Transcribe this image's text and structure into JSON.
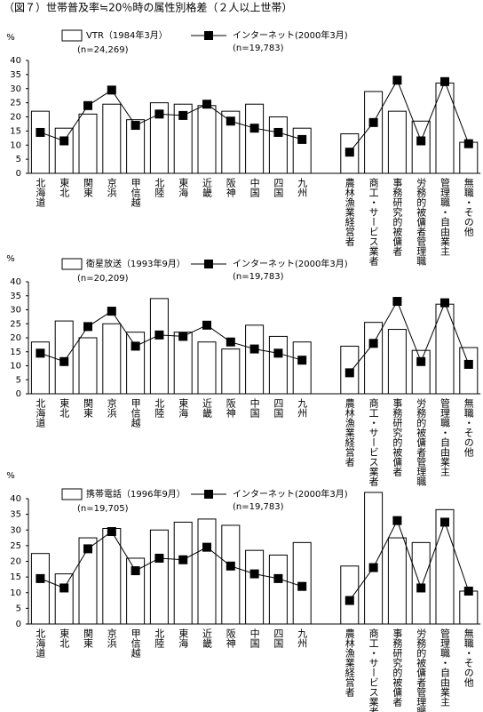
{
  "title": "（図７）世帯普及率≒20％時の属性別格差（２人以上世帯）",
  "chart_data": [
    {
      "type": "bar_line",
      "y_label": "%",
      "ylim": [
        0,
        40
      ],
      "yticks": [
        0,
        5,
        10,
        15,
        20,
        25,
        30,
        35,
        40
      ],
      "categories": [
        "北海道",
        "東北",
        "関東",
        "京浜",
        "甲信越",
        "北陸",
        "東海",
        "近畿",
        "阪神",
        "中国",
        "四国",
        "九州",
        null,
        "農林漁業経営者",
        "商工・サービス業者",
        "事務研究的被傭者",
        "労務的被傭者管理職",
        "管理職・自由業主",
        "無職・その他"
      ],
      "series": [
        {
          "name": "VTR（1984年3月）",
          "note": "(n=24,269)",
          "kind": "bar",
          "color": "#ffffff",
          "values": [
            22,
            16,
            21,
            24.5,
            19,
            25,
            24.5,
            24,
            22,
            24.5,
            20,
            16,
            null,
            14,
            29,
            22,
            18.5,
            32,
            11
          ]
        },
        {
          "name": "インターネット(2000年3月)",
          "note": "(n=19,783)",
          "kind": "line",
          "color": "#000000",
          "values": [
            14.5,
            11.5,
            24,
            29.5,
            17,
            21,
            20.5,
            24.5,
            18.5,
            16,
            14.5,
            12,
            null,
            7.5,
            18,
            33,
            11.5,
            32.5,
            10.5
          ]
        }
      ]
    },
    {
      "type": "bar_line",
      "y_label": "%",
      "ylim": [
        0,
        40
      ],
      "yticks": [
        0,
        5,
        10,
        15,
        20,
        25,
        30,
        35,
        40
      ],
      "categories": [
        "北海道",
        "東北",
        "関東",
        "京浜",
        "甲信越",
        "北陸",
        "東海",
        "近畿",
        "阪神",
        "中国",
        "四国",
        "九州",
        null,
        "農林漁業経営者",
        "商工・サービス業者",
        "事務研究的被傭者",
        "労務的被傭者管理職",
        "管理職・自由業主",
        "無職・その他"
      ],
      "series": [
        {
          "name": "衛星放送（1993年9月）",
          "note": "(n=20,209)",
          "kind": "bar",
          "color": "#ffffff",
          "values": [
            18.5,
            26,
            20,
            25,
            22,
            34,
            22,
            18.5,
            16,
            24.5,
            20.5,
            18.5,
            null,
            17,
            25.5,
            23,
            15.5,
            32,
            16.5
          ]
        },
        {
          "name": "インターネット(2000年3月)",
          "note": "(n=19,783)",
          "kind": "line",
          "color": "#000000",
          "values": [
            14.5,
            11.5,
            24,
            29.5,
            17,
            21,
            20.5,
            24.5,
            18.5,
            16,
            14.5,
            12,
            null,
            7.5,
            18,
            33,
            11.5,
            32.5,
            10.5
          ]
        }
      ]
    },
    {
      "type": "bar_line",
      "y_label": "%",
      "ylim": [
        0,
        40
      ],
      "yticks": [
        0,
        5,
        10,
        15,
        20,
        25,
        30,
        35,
        40
      ],
      "categories": [
        "北海道",
        "東北",
        "関東",
        "京浜",
        "甲信越",
        "北陸",
        "東海",
        "近畿",
        "阪神",
        "中国",
        "四国",
        "九州",
        null,
        "農林漁業経営者",
        "商工・サービス業者",
        "事務研究的被傭者",
        "労務的被傭者管理職",
        "管理職・自由業主",
        "無職・その他"
      ],
      "series": [
        {
          "name": "携帯電話（1996年9月）",
          "note": "(n=19,705)",
          "kind": "bar",
          "color": "#ffffff",
          "values": [
            22.5,
            16,
            27.5,
            30.5,
            21,
            30,
            32.5,
            33.5,
            31.5,
            23.5,
            22,
            26,
            null,
            18.5,
            42,
            27.5,
            26,
            36.5,
            10.5
          ]
        },
        {
          "name": "インターネット(2000年3月)",
          "note": "(n=19,783)",
          "kind": "line",
          "color": "#000000",
          "values": [
            14.5,
            11.5,
            24,
            29.5,
            17,
            21,
            20.5,
            24.5,
            18.5,
            16,
            14.5,
            12,
            null,
            7.5,
            18,
            33,
            11.5,
            32.5,
            10.5
          ]
        }
      ]
    }
  ]
}
